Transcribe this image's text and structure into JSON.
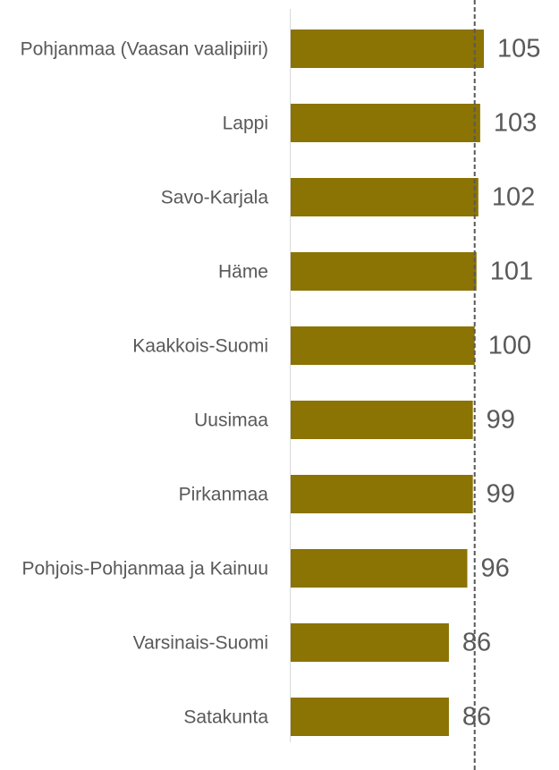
{
  "chart_data": {
    "type": "bar",
    "orientation": "horizontal",
    "categories": [
      "Pohjanmaa (Vaasan vaalipiiri)",
      "Lappi",
      "Savo-Karjala",
      "Häme",
      "Kaakkois-Suomi",
      "Uusimaa",
      "Pirkanmaa",
      "Pohjois-Pohjanmaa ja Kainuu",
      "Varsinais-Suomi",
      "Satakunta"
    ],
    "values": [
      105,
      103,
      102,
      101,
      100,
      99,
      99,
      96,
      86,
      86
    ],
    "color": "#8b7304",
    "xlim": [
      0,
      140
    ],
    "reference_line": 100
  }
}
